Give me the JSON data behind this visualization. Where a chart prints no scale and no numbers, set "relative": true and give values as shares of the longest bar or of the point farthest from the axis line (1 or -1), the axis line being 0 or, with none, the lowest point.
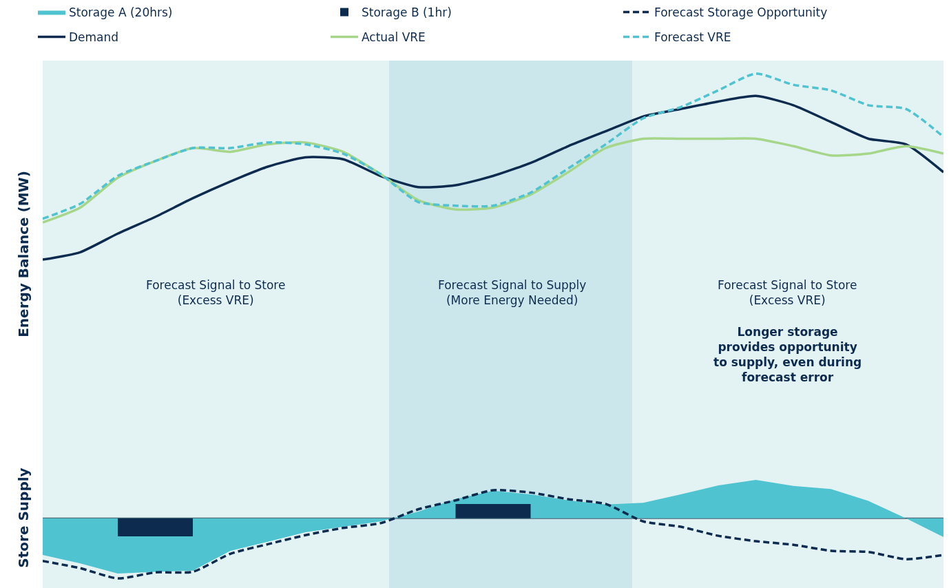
{
  "chart_data": [
    {
      "type": "line",
      "relative": true,
      "ylabel": "Energy Balance (MW)",
      "legend": "top",
      "categories": [
        null,
        null,
        null,
        null,
        null,
        null,
        null,
        null,
        null,
        null,
        null,
        null,
        null,
        null,
        null,
        null,
        null,
        null,
        null,
        null,
        null,
        null,
        null,
        null,
        null
      ],
      "series": [
        {
          "name": "Demand",
          "color": "#0d2b4e",
          "line_style": "solid",
          "values": [
            0,
            0.04,
            0.14,
            0.23,
            0.33,
            0.42,
            0.5,
            0.55,
            0.54,
            0.45,
            0.39,
            0.4,
            0.45,
            0.52,
            0.61,
            0.69,
            0.77,
            0.81,
            0.85,
            0.88,
            0.83,
            0.74,
            0.65,
            0.62,
            0.47
          ]
        },
        {
          "name": "Actual VRE",
          "color": "#a6d68a",
          "line_style": "solid",
          "values": [
            0.2,
            0.28,
            0.44,
            0.53,
            0.6,
            0.58,
            0.62,
            0.63,
            0.58,
            0.46,
            0.32,
            0.27,
            0.28,
            0.35,
            0.47,
            0.6,
            0.65,
            0.65,
            0.65,
            0.65,
            0.61,
            0.56,
            0.57,
            0.61,
            0.57
          ]
        },
        {
          "name": "Forecast VRE",
          "color": "#4fc3d0",
          "line_style": "dashed",
          "values": [
            0.22,
            0.3,
            0.45,
            0.53,
            0.6,
            0.6,
            0.63,
            0.62,
            0.57,
            0.46,
            0.31,
            0.29,
            0.29,
            0.36,
            0.49,
            0.62,
            0.76,
            0.82,
            0.91,
            1.0,
            0.94,
            0.91,
            0.83,
            0.81,
            0.66
          ]
        }
      ],
      "annotations": [
        "Forecast Signal to Store\n(Excess VRE)",
        "Forecast Signal to Supply\n(More Energy Needed)",
        "Forecast Signal to Store\n(Excess VRE)",
        "Longer storage\nprovides opportunity\nto supply, even during\nforecast error"
      ]
    },
    {
      "type": "area",
      "relative": true,
      "ylabel": "Store Supply",
      "legend": "top",
      "categories": [
        null,
        null,
        null,
        null,
        null,
        null,
        null,
        null,
        null,
        null,
        null,
        null,
        null,
        null,
        null,
        null,
        null,
        null,
        null,
        null,
        null,
        null,
        null,
        null,
        null
      ],
      "series": [
        {
          "name": "Storage A (20hrs)",
          "color": "#4fc3d0",
          "values": [
            -0.61,
            -0.75,
            -0.92,
            -0.89,
            -0.87,
            -0.54,
            -0.39,
            -0.23,
            -0.14,
            -0.05,
            0.11,
            0.32,
            0.46,
            0.4,
            0.3,
            0.23,
            0.26,
            0.4,
            0.55,
            0.64,
            0.54,
            0.49,
            0.29,
            0.0,
            -0.31
          ]
        },
        {
          "name": "Storage B (1hr)",
          "type": "bar",
          "color": "#0d2b4e",
          "values": [
            null,
            null,
            null,
            -0.3,
            null,
            null,
            null,
            null,
            null,
            null,
            null,
            null,
            0.24,
            null,
            null,
            null,
            null,
            null,
            null,
            null,
            null,
            null,
            null,
            null,
            null
          ]
        },
        {
          "name": "Forecast Storage Opportunity",
          "type": "line",
          "color": "#0d2b4e",
          "line_style": "dashed",
          "values": [
            -0.71,
            -0.83,
            -1.0,
            -0.9,
            -0.89,
            -0.59,
            -0.43,
            -0.28,
            -0.16,
            -0.08,
            0.15,
            0.3,
            0.47,
            0.43,
            0.32,
            0.24,
            -0.05,
            -0.14,
            -0.29,
            -0.38,
            -0.44,
            -0.54,
            -0.56,
            -0.68,
            -0.61
          ]
        }
      ]
    }
  ]
}
